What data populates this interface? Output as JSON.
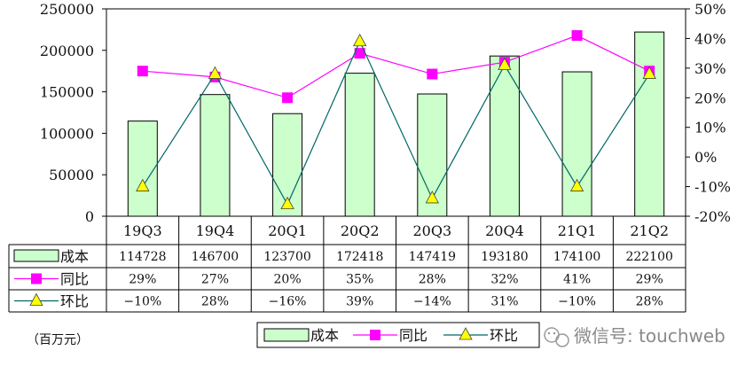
{
  "chart_data": {
    "type": "bar",
    "title": "",
    "unit_label": "（百万元）",
    "categories": [
      "19Q3",
      "19Q4",
      "20Q1",
      "20Q2",
      "20Q3",
      "20Q4",
      "21Q1",
      "21Q2"
    ],
    "left_axis": {
      "min": 0,
      "max": 250000,
      "step": 50000,
      "ticks": [
        "0",
        "50000",
        "100000",
        "150000",
        "200000",
        "250000"
      ]
    },
    "right_axis": {
      "min": -20,
      "max": 50,
      "step": 10,
      "ticks": [
        "-20%",
        "-10%",
        "0%",
        "10%",
        "20%",
        "30%",
        "40%",
        "50%"
      ]
    },
    "series": [
      {
        "name": "成本",
        "kind": "bar",
        "axis": "left",
        "color": "#ccffcc",
        "values": [
          114728,
          146700,
          123700,
          172418,
          147419,
          193180,
          174100,
          222100
        ],
        "labels": [
          "114728",
          "146700",
          "123700",
          "172418",
          "147419",
          "193180",
          "174100",
          "222100"
        ]
      },
      {
        "name": "同比",
        "kind": "line",
        "axis": "right",
        "color": "#ff00ff",
        "marker": "square",
        "values": [
          29,
          27,
          20,
          35,
          28,
          32,
          41,
          29
        ],
        "labels": [
          "29%",
          "27%",
          "20%",
          "35%",
          "28%",
          "32%",
          "41%",
          "29%"
        ]
      },
      {
        "name": "环比",
        "kind": "line",
        "axis": "right",
        "color": "#006666",
        "marker": "triangle",
        "marker_color": "#ffff00",
        "values": [
          -10,
          28,
          -16,
          39,
          -14,
          31,
          -10,
          28
        ],
        "labels": [
          "−10%",
          "28%",
          "−16%",
          "39%",
          "−14%",
          "31%",
          "−10%",
          "28%"
        ]
      }
    ],
    "legend": [
      "成本",
      "同比",
      "环比"
    ],
    "legend_position": "bottom-center"
  },
  "watermark": "微信号: touchweb"
}
